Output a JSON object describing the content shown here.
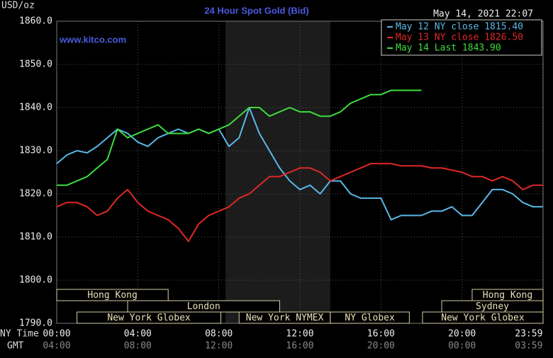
{
  "chart_data": {
    "type": "line",
    "title": "24 Hour Spot Gold (Bid)",
    "unit": "USD/oz",
    "timestamp": "May 14, 2021 22:07",
    "watermark": "www.kitco.com",
    "x_row_labels": [
      "NY Time",
      "GMT"
    ],
    "x": [
      0,
      0.5,
      1,
      1.5,
      2,
      2.5,
      3,
      3.5,
      4,
      4.5,
      5,
      5.5,
      6,
      6.5,
      7,
      7.5,
      8,
      8.5,
      9,
      9.5,
      10,
      10.5,
      11,
      11.5,
      12,
      12.5,
      13,
      13.5,
      14,
      14.5,
      15,
      15.5,
      16,
      16.5,
      17,
      17.5,
      18,
      18.5,
      19,
      19.5,
      20,
      20.5,
      21,
      21.5,
      22,
      22.5,
      23,
      23.5,
      24
    ],
    "xlim": [
      0,
      24
    ],
    "xticks": [
      {
        "value": 0,
        "label": "00:00"
      },
      {
        "value": 4,
        "label": "04:00"
      },
      {
        "value": 8,
        "label": "08:00"
      },
      {
        "value": 12,
        "label": "12:00"
      },
      {
        "value": 16,
        "label": "16:00"
      },
      {
        "value": 20,
        "label": "20:00"
      },
      {
        "value": 23.98,
        "label": "23:59"
      }
    ],
    "gmt_tick_labels": [
      "04:00",
      "08:00",
      "12:00",
      "16:00",
      "20:00",
      "00:00",
      "03:59"
    ],
    "ylim": [
      1790,
      1860
    ],
    "yticks": [
      {
        "value": 1790,
        "label": "1790.0"
      },
      {
        "value": 1800,
        "label": "1800.0"
      },
      {
        "value": 1810,
        "label": "1810.0"
      },
      {
        "value": 1820,
        "label": "1820.0"
      },
      {
        "value": 1830,
        "label": "1830.0"
      },
      {
        "value": 1840,
        "label": "1840.0"
      },
      {
        "value": 1850,
        "label": "1850.0"
      },
      {
        "value": 1860,
        "label": "1860.0"
      }
    ],
    "grid": true,
    "legend": "upper right",
    "shaded_span": [
      8.33,
      13.5
    ],
    "sessions": [
      {
        "name": "Hong Kong",
        "start": 0,
        "end": 5.5,
        "row": 0
      },
      {
        "name": "London",
        "start": 3.5,
        "end": 11,
        "row": 1
      },
      {
        "name": "New York Globex",
        "start": 1,
        "end": 8.1,
        "row": 2
      },
      {
        "name": "New York NYMEX",
        "start": 9,
        "end": 13.5,
        "row": 2
      },
      {
        "name": "NY Globex",
        "start": 13.5,
        "end": 17.4,
        "row": 2
      },
      {
        "name": "Hong Kong",
        "start": 20.5,
        "end": 24,
        "row": 0
      },
      {
        "name": "Sydney",
        "start": 19,
        "end": 24,
        "row": 1
      },
      {
        "name": "New York Globex",
        "start": 18.05,
        "end": 24,
        "row": 2
      }
    ],
    "series": [
      {
        "name": "May 12 NY close 1815.40",
        "color": "#5ab8e8",
        "values": [
          1827,
          1829,
          1830,
          1829.5,
          1831,
          1833,
          1835,
          1834,
          1832,
          1831,
          1833,
          1834,
          1835,
          1834,
          1835,
          1834,
          1835,
          1831,
          1833,
          1840,
          1834,
          1830,
          1826,
          1823,
          1821,
          1822,
          1820,
          1823,
          1823,
          1820,
          1819,
          1819,
          1819,
          1814,
          1815,
          1815,
          1815,
          1816,
          1816,
          1817,
          1815,
          1815,
          1818,
          1821,
          1821,
          1820,
          1818,
          1817,
          1817
        ]
      },
      {
        "name": "May 13 NY close 1826.50",
        "color": "#e02828",
        "values": [
          1817,
          1818,
          1818,
          1817,
          1815,
          1816,
          1819,
          1821,
          1818,
          1816,
          1815,
          1814,
          1812,
          1809,
          1813,
          1815,
          1816,
          1817,
          1819,
          1820,
          1822,
          1824,
          1824,
          1825,
          1826,
          1826,
          1825,
          1823,
          1824,
          1825,
          1826,
          1827,
          1827,
          1827,
          1826.5,
          1826.5,
          1826.5,
          1826,
          1826,
          1825.5,
          1825,
          1824,
          1824,
          1823,
          1824,
          1823,
          1821,
          1822,
          1822
        ]
      },
      {
        "name": "May 14 Last 1843.90",
        "color": "#3ddc3d",
        "values": [
          1822,
          1822,
          1823,
          1824,
          1826,
          1828,
          1835,
          1833,
          1834,
          1835,
          1836,
          1834,
          1834,
          1834,
          1835,
          1834,
          1835,
          1836,
          1838,
          1840,
          1840,
          1838,
          1839,
          1840,
          1839,
          1839,
          1838,
          1838,
          1839,
          1841,
          1842,
          1843,
          1843,
          1844,
          1844,
          1844,
          1844,
          null,
          null,
          null,
          null,
          null,
          null,
          null,
          null,
          null,
          null,
          null,
          null
        ]
      }
    ]
  }
}
